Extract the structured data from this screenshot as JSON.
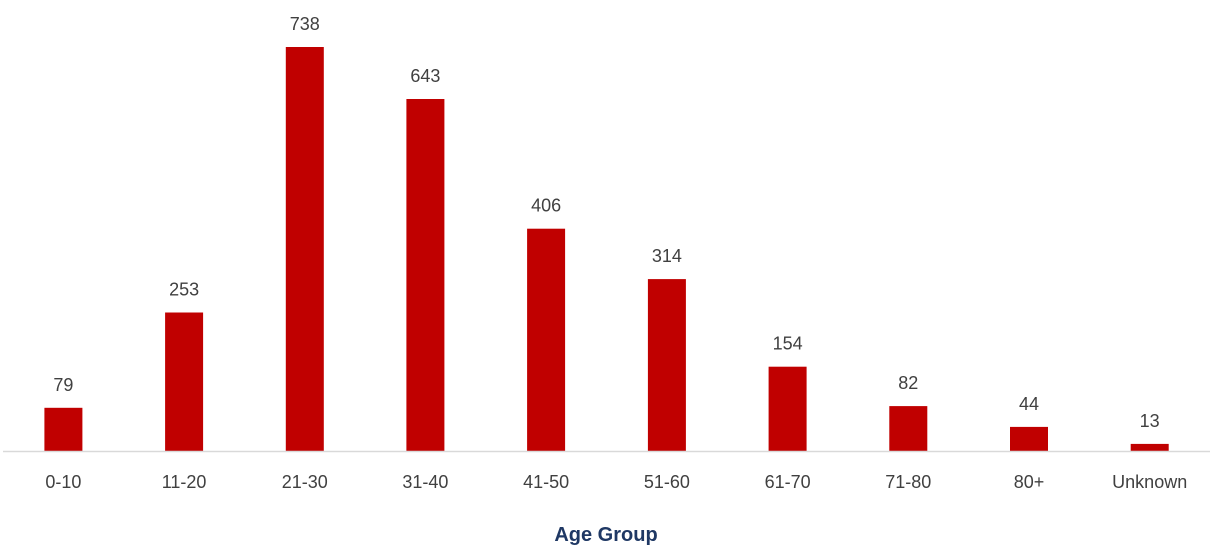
{
  "chart_data": {
    "type": "bar",
    "categories": [
      "0-10",
      "11-20",
      "21-30",
      "31-40",
      "41-50",
      "51-60",
      "61-70",
      "71-80",
      "80+",
      "Unknown"
    ],
    "values": [
      79,
      253,
      738,
      643,
      406,
      314,
      154,
      82,
      44,
      13
    ],
    "title": "",
    "xlabel": "Age Group",
    "ylabel": "",
    "ylim": [
      0,
      738
    ],
    "grid": false,
    "data_labels": true,
    "colors": {
      "bar": "#c00000",
      "axis_line": "#d9d9d9",
      "text": "#404040",
      "axis_title": "#1f3864"
    }
  }
}
